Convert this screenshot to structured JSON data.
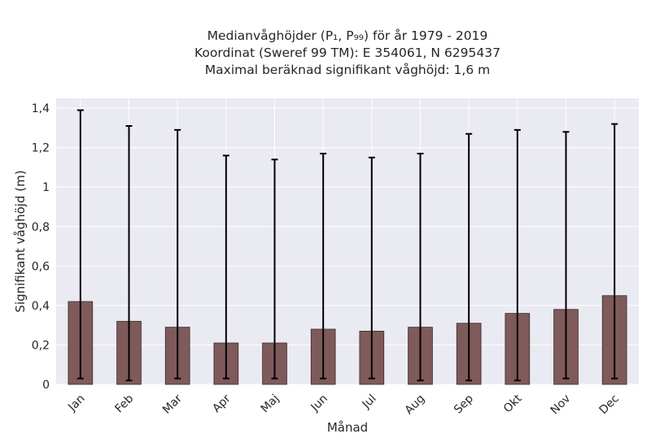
{
  "chart_data": {
    "type": "bar",
    "title_lines": [
      "Medianvåghöjder (P₁, P₉₉) för år 1979 - 2019",
      "Koordinat (Sweref 99 TM): E 354061, N 6295437",
      "Maximal beräknad signifikant våghöjd: 1,6 m"
    ],
    "xlabel": "Månad",
    "ylabel": "Signifikant våghöjd (m)",
    "categories": [
      "Jan",
      "Feb",
      "Mar",
      "Apr",
      "Maj",
      "Jun",
      "Jul",
      "Aug",
      "Sep",
      "Okt",
      "Nov",
      "Dec"
    ],
    "values": [
      0.42,
      0.32,
      0.29,
      0.21,
      0.21,
      0.28,
      0.27,
      0.29,
      0.31,
      0.36,
      0.38,
      0.45
    ],
    "error_low": [
      0.03,
      0.02,
      0.03,
      0.03,
      0.03,
      0.03,
      0.03,
      0.02,
      0.02,
      0.02,
      0.03,
      0.03
    ],
    "error_high": [
      1.39,
      1.31,
      1.29,
      1.16,
      1.14,
      1.17,
      1.15,
      1.17,
      1.27,
      1.29,
      1.28,
      1.32
    ],
    "ylim": [
      0,
      1.45
    ],
    "yticks": [
      0,
      0.2,
      0.4,
      0.6,
      0.8,
      1,
      1.2,
      1.4
    ],
    "ytick_labels": [
      "0",
      "0,2",
      "0,4",
      "0,6",
      "0,8",
      "1",
      "1,2",
      "1,4"
    ],
    "grid": true,
    "colors": {
      "bar_fill": "#7f5a5b",
      "bar_edge": "#3a2a2a",
      "error_bar": "#000000",
      "plot_background": "#eaeaf2",
      "grid": "#ffffff",
      "text": "#262626"
    }
  }
}
